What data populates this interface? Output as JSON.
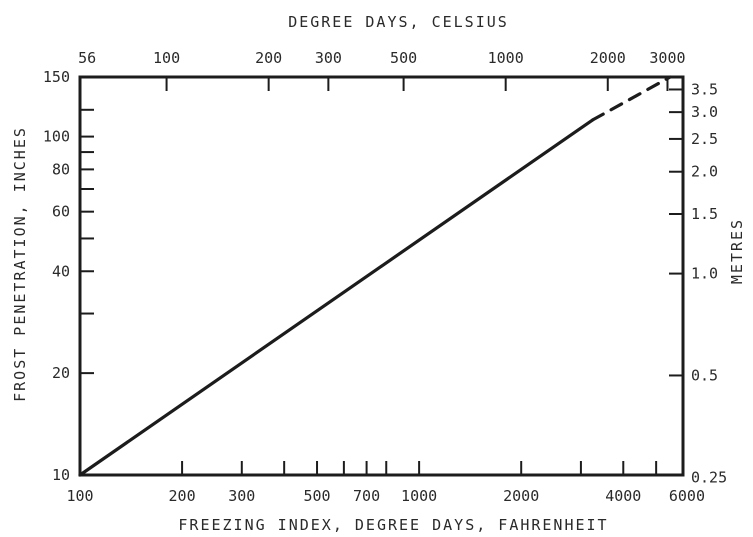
{
  "chart_data": {
    "type": "line",
    "x_scale": "log",
    "y_scale": "log",
    "xlabel_bottom": "FREEZING INDEX, DEGREE DAYS, FAHRENHEIT",
    "xlabel_top": "DEGREE DAYS, CELSIUS",
    "ylabel_left": "FROST PENETRATION, INCHES",
    "ylabel_right": "METRES",
    "xlim": [
      100,
      6000
    ],
    "ylim": [
      10,
      150
    ],
    "grid": false,
    "bottom_ticks": [
      "100",
      "200",
      "300",
      "500",
      "700",
      "1000",
      "2000",
      "4000",
      "6000"
    ],
    "bottom_minor": [
      400,
      600,
      800,
      3000,
      5000
    ],
    "top_ticks": [
      "56",
      "100",
      "200",
      "300",
      "500",
      "1000",
      "2000",
      "3000"
    ],
    "left_ticks": [
      "10",
      "20",
      "40",
      "60",
      "80",
      "100",
      "150"
    ],
    "left_minor": [
      30,
      50,
      70,
      90,
      120
    ],
    "right_ticks": [
      "0.25",
      "0.5",
      "1.0",
      "1.5",
      "2.0",
      "2.5",
      "3.0",
      "3.5"
    ],
    "series": [
      {
        "style": "solid",
        "points": [
          [
            100,
            10
          ],
          [
            3250,
            112
          ]
        ]
      },
      {
        "style": "dashed",
        "points": [
          [
            3250,
            112
          ],
          [
            5500,
            150
          ]
        ]
      }
    ]
  }
}
